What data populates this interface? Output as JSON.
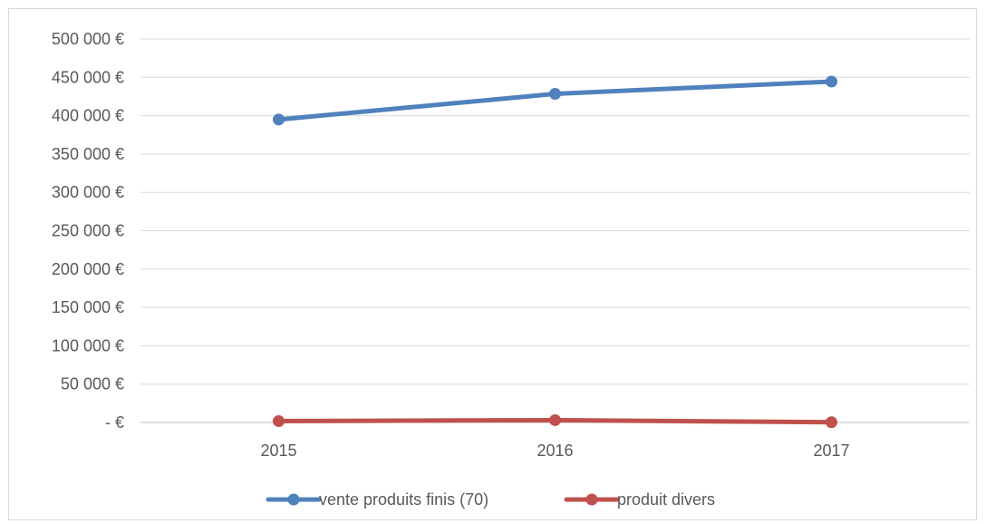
{
  "chart_data": {
    "type": "line",
    "title": "",
    "xlabel": "",
    "ylabel": "",
    "categories": [
      "2015",
      "2016",
      "2017"
    ],
    "series": [
      {
        "name": "vente produits finis (70)",
        "color": "#4f81bd",
        "values": [
          395000,
          428500,
          444500
        ]
      },
      {
        "name": "produit divers",
        "color": "#c0504d",
        "values": [
          1800,
          3000,
          300
        ]
      }
    ],
    "ylim": [
      0,
      500000
    ],
    "yticks": [
      0,
      50000,
      100000,
      150000,
      200000,
      250000,
      300000,
      350000,
      400000,
      450000,
      500000
    ],
    "ytick_labels": [
      "-  €",
      "50 000 €",
      "100 000 €",
      "150 000 €",
      "200 000 €",
      "250 000 €",
      "300 000 €",
      "350 000 €",
      "400 000 €",
      "450 000 €",
      "500 000 €"
    ],
    "grid": true,
    "legend_position": "bottom"
  }
}
